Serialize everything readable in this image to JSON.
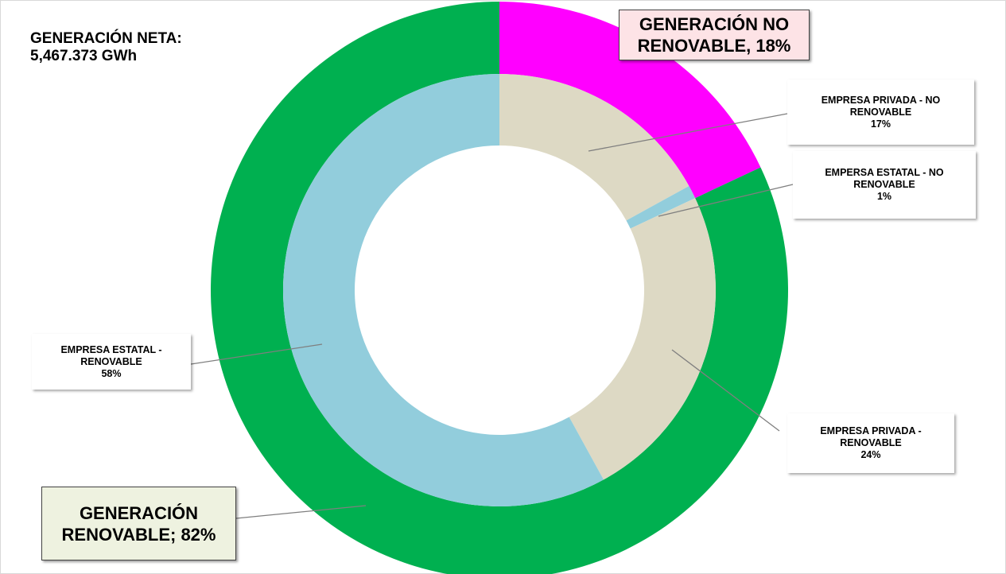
{
  "chart_data": {
    "type": "nested-donut",
    "title": "GENERACIÓN NETA:",
    "subtitle": "5,467.373 GWh",
    "series": [
      {
        "values": [
          18,
          82
        ],
        "colors": [
          "#ff00ff",
          "#00b050"
        ],
        "value_labels": [
          "GENERACIÓN NO RENOVABLE, 18%",
          "GENERACIÓN RENOVABLE; 82%"
        ]
      },
      {
        "categories": [
          "EMPRESA PRIVADA - NO RENOVABLE",
          "EMPERSA ESTATAL - NO RENOVABLE",
          "EMPRESA PRIVADA - RENOVABLE",
          "EMPRESA ESTATAL - RENOVABLE"
        ],
        "values": [
          17,
          1,
          24,
          58
        ],
        "colors": [
          "#ddd9c4",
          "#92cddc",
          "#ddd9c4",
          "#92cddc"
        ],
        "value_labels": [
          "17%",
          "1%",
          "24%",
          "58%"
        ]
      }
    ]
  }
}
